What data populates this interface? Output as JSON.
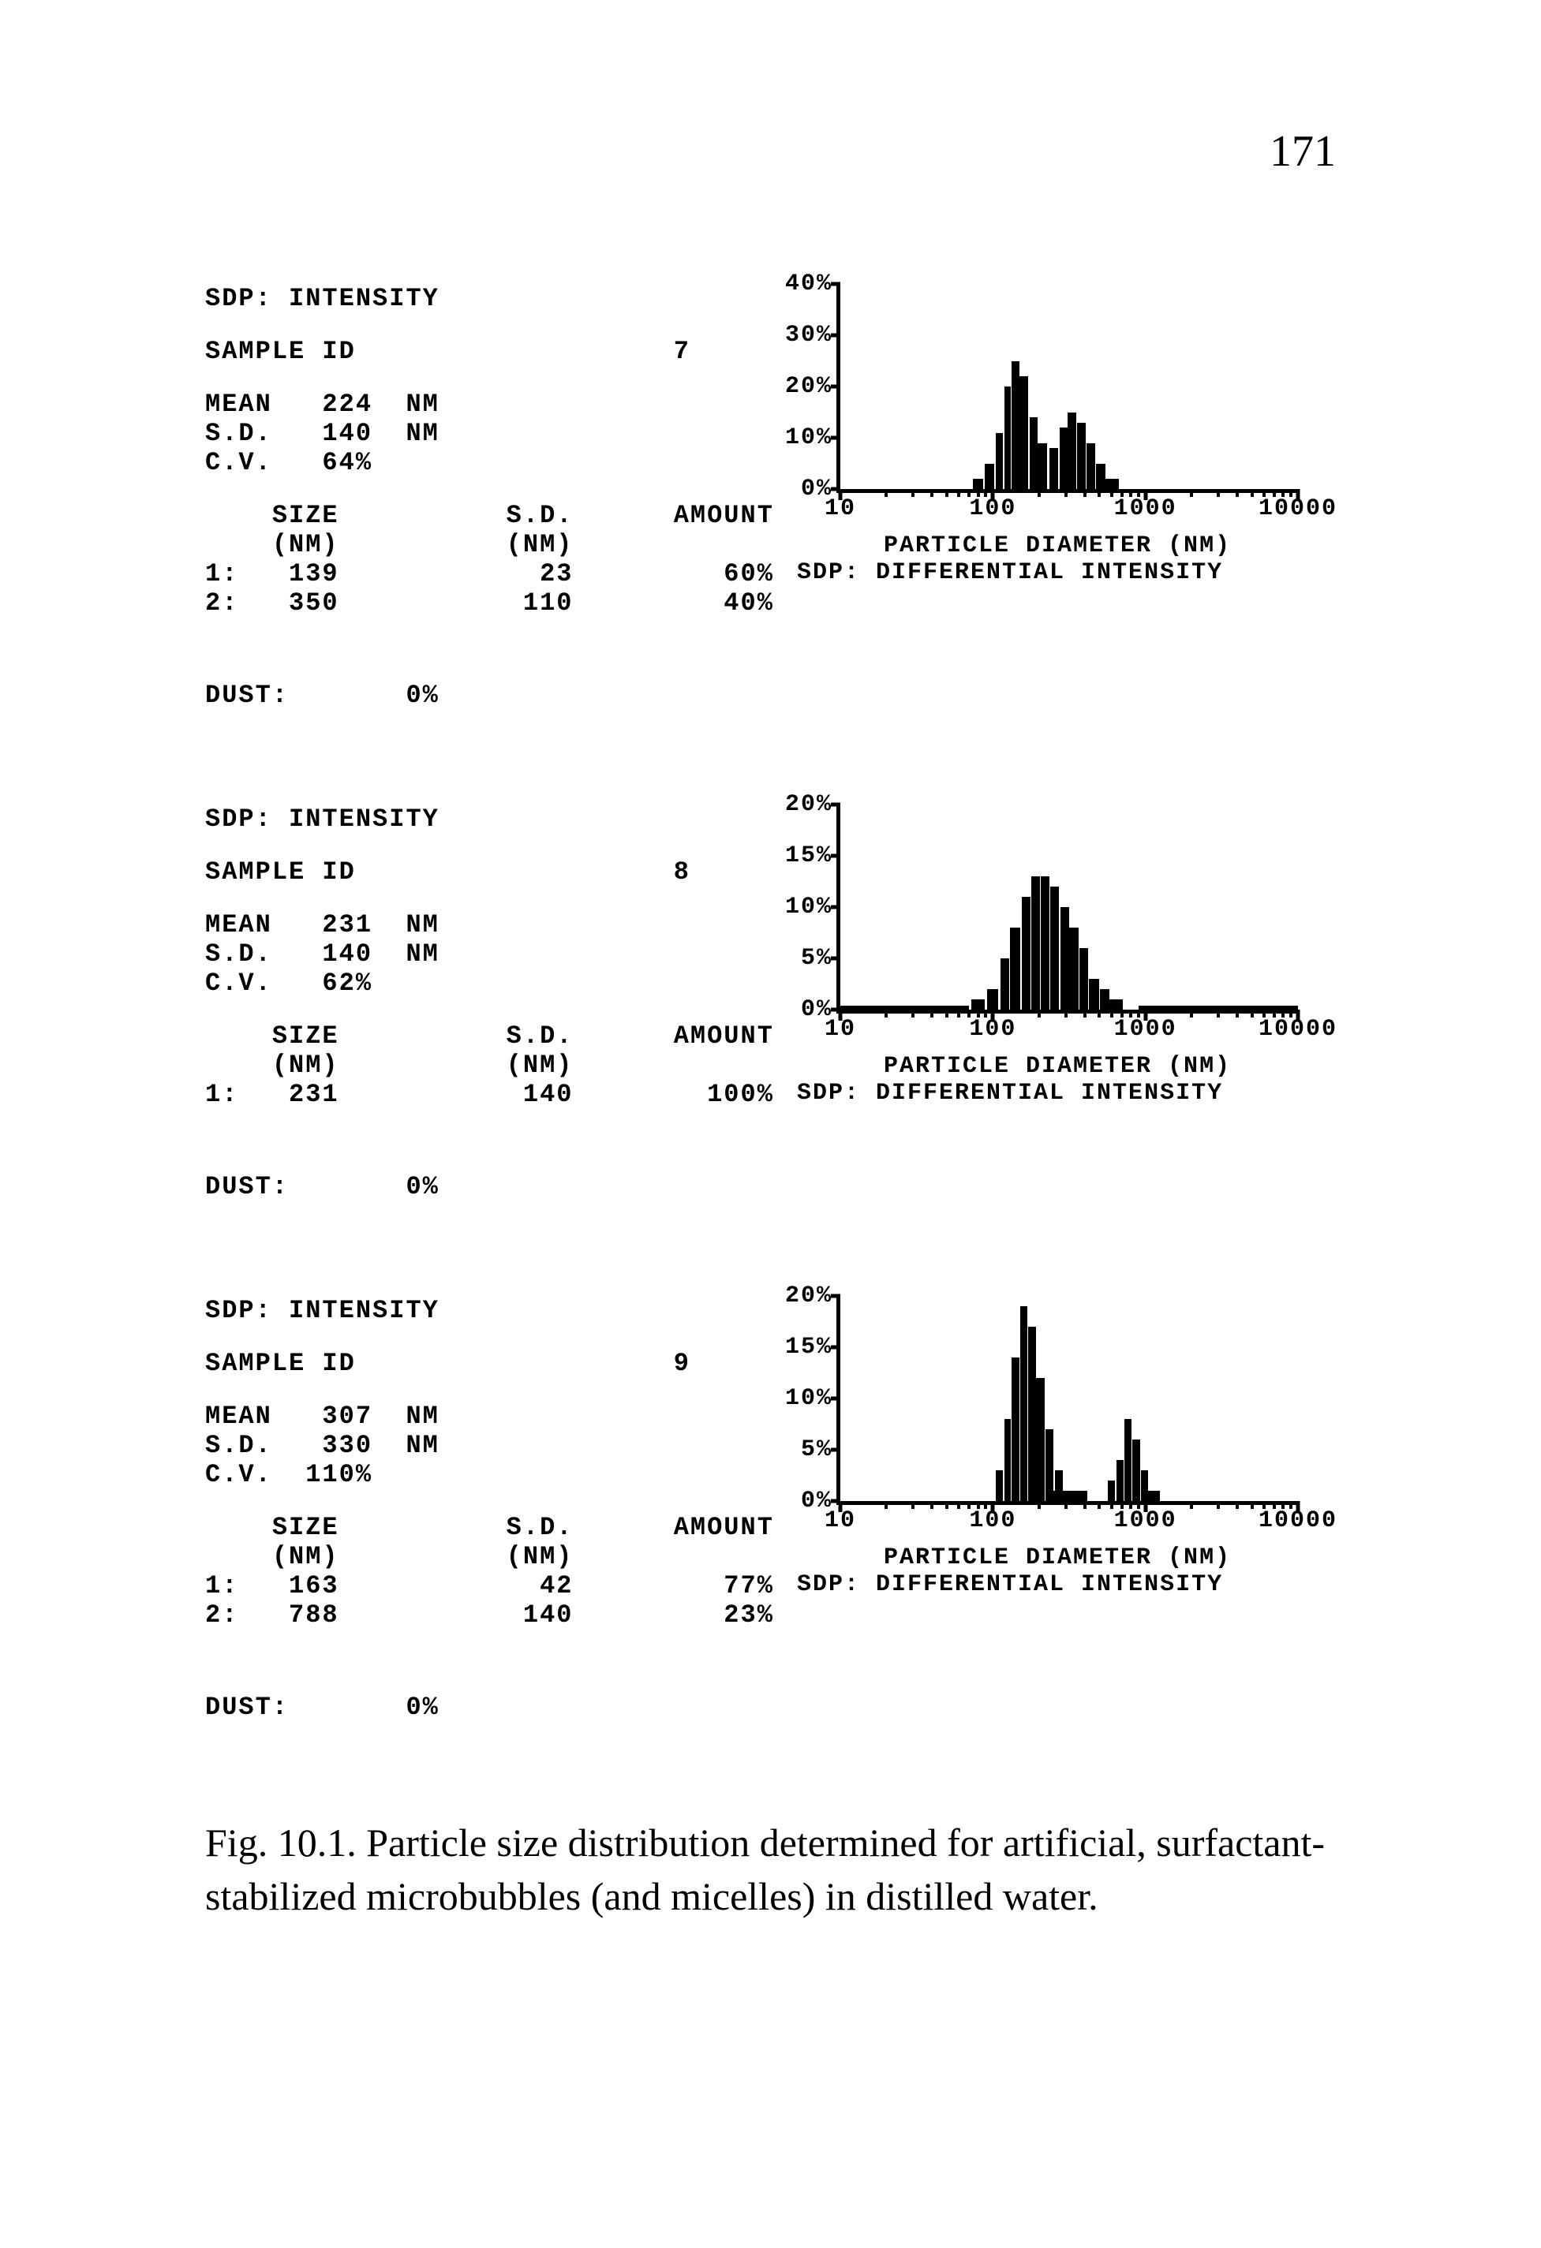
{
  "page_number": "171",
  "caption": "Fig. 10.1.  Particle size distribution determined for artificial, surfactant-stabilized microbubbles (and micelles) in distilled water.",
  "axis": {
    "xlabel": "PARTICLE DIAMETER (NM)",
    "subtitle": "SDP: DIFFERENTIAL INTENSITY",
    "x_ticks": [
      "10",
      "100",
      "1000",
      "10000"
    ],
    "x_log_min": 1,
    "x_log_max": 4
  },
  "panels": [
    {
      "header": "SDP: INTENSITY",
      "sample_label": "SAMPLE ID",
      "sample_id": "7",
      "stats": [
        {
          "label": "MEAN",
          "value": "224",
          "unit": "NM"
        },
        {
          "label": "S.D.",
          "value": "140",
          "unit": "NM"
        },
        {
          "label": "C.V.",
          "value": " 64%",
          "unit": ""
        }
      ],
      "table_headers": [
        "SIZE",
        "S.D.",
        "AMOUNT"
      ],
      "table_subheaders": [
        "(NM)",
        "(NM)",
        ""
      ],
      "rows": [
        {
          "n": "1:",
          "size": "139",
          "sd": "23",
          "amount": "60%"
        },
        {
          "n": "2:",
          "size": "350",
          "sd": "110",
          "amount": "40%"
        }
      ],
      "dust_label": "DUST:",
      "dust_value": "0%",
      "chart": {
        "ymax": 40,
        "ystep": 10,
        "bars": [
          {
            "x": 80,
            "h": 2
          },
          {
            "x": 95,
            "h": 5
          },
          {
            "x": 110,
            "h": 11
          },
          {
            "x": 125,
            "h": 20
          },
          {
            "x": 140,
            "h": 25
          },
          {
            "x": 160,
            "h": 22
          },
          {
            "x": 185,
            "h": 14
          },
          {
            "x": 210,
            "h": 9
          },
          {
            "x": 250,
            "h": 8
          },
          {
            "x": 290,
            "h": 12
          },
          {
            "x": 330,
            "h": 15
          },
          {
            "x": 380,
            "h": 13
          },
          {
            "x": 440,
            "h": 9
          },
          {
            "x": 510,
            "h": 5
          },
          {
            "x": 600,
            "h": 2
          }
        ]
      }
    },
    {
      "header": "SDP: INTENSITY",
      "sample_label": "SAMPLE ID",
      "sample_id": "8",
      "stats": [
        {
          "label": "MEAN",
          "value": "231",
          "unit": "NM"
        },
        {
          "label": "S.D.",
          "value": "140",
          "unit": "NM"
        },
        {
          "label": "C.V.",
          "value": " 62%",
          "unit": ""
        }
      ],
      "table_headers": [
        "SIZE",
        "S.D.",
        "AMOUNT"
      ],
      "table_subheaders": [
        "(NM)",
        "(NM)",
        ""
      ],
      "rows": [
        {
          "n": "1:",
          "size": "231",
          "sd": "140",
          "amount": "100%"
        }
      ],
      "dust_label": "DUST:",
      "dust_value": "0%",
      "chart": {
        "ymax": 20,
        "ystep": 5,
        "noise_left": true,
        "noise_right": true,
        "bars": [
          {
            "x": 80,
            "h": 1
          },
          {
            "x": 100,
            "h": 2
          },
          {
            "x": 120,
            "h": 5
          },
          {
            "x": 140,
            "h": 8
          },
          {
            "x": 165,
            "h": 11
          },
          {
            "x": 190,
            "h": 13
          },
          {
            "x": 220,
            "h": 13
          },
          {
            "x": 255,
            "h": 12
          },
          {
            "x": 295,
            "h": 10
          },
          {
            "x": 340,
            "h": 8
          },
          {
            "x": 395,
            "h": 6
          },
          {
            "x": 460,
            "h": 3
          },
          {
            "x": 540,
            "h": 2
          },
          {
            "x": 640,
            "h": 1
          }
        ]
      }
    },
    {
      "header": "SDP: INTENSITY",
      "sample_label": "SAMPLE ID",
      "sample_id": "9",
      "stats": [
        {
          "label": "MEAN",
          "value": "307",
          "unit": "NM"
        },
        {
          "label": "S.D.",
          "value": "330",
          "unit": "NM"
        },
        {
          "label": "C.V.",
          "value": "110%",
          "unit": ""
        }
      ],
      "table_headers": [
        "SIZE",
        "S.D.",
        "AMOUNT"
      ],
      "table_subheaders": [
        "(NM)",
        "(NM)",
        ""
      ],
      "rows": [
        {
          "n": "1:",
          "size": "163",
          "sd": "42",
          "amount": "77%"
        },
        {
          "n": "2:",
          "size": "788",
          "sd": "140",
          "amount": "23%"
        }
      ],
      "dust_label": "DUST:",
      "dust_value": "0%",
      "chart": {
        "ymax": 20,
        "ystep": 5,
        "bars": [
          {
            "x": 110,
            "h": 3
          },
          {
            "x": 125,
            "h": 8
          },
          {
            "x": 140,
            "h": 14
          },
          {
            "x": 160,
            "h": 19
          },
          {
            "x": 180,
            "h": 17
          },
          {
            "x": 205,
            "h": 12
          },
          {
            "x": 235,
            "h": 7
          },
          {
            "x": 270,
            "h": 3
          },
          {
            "x": 310,
            "h": 1
          },
          {
            "x": 600,
            "h": 2
          },
          {
            "x": 680,
            "h": 4
          },
          {
            "x": 770,
            "h": 8
          },
          {
            "x": 870,
            "h": 6
          },
          {
            "x": 990,
            "h": 3
          },
          {
            "x": 1120,
            "h": 1
          }
        ]
      }
    }
  ]
}
